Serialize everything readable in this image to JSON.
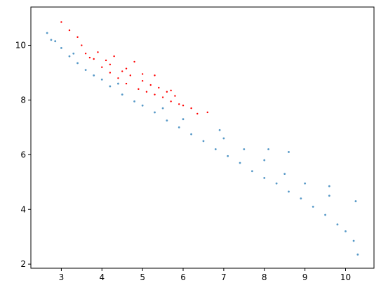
{
  "chart_data": {
    "type": "scatter",
    "title": "",
    "xlabel": "",
    "ylabel": "",
    "xlim": [
      2.25,
      10.7
    ],
    "ylim": [
      1.85,
      11.4
    ],
    "x_ticks": [
      3,
      4,
      5,
      6,
      7,
      8,
      9,
      10
    ],
    "y_ticks": [
      2,
      4,
      6,
      8,
      10
    ],
    "x_tick_labels": [
      "3",
      "4",
      "5",
      "6",
      "7",
      "8",
      "9",
      "10"
    ],
    "y_tick_labels": [
      "2",
      "4",
      "6",
      "8",
      "10"
    ],
    "grid": false,
    "legend": "none",
    "series": [
      {
        "color": "#1f77b4",
        "values": [
          [
            2.65,
            10.45
          ],
          [
            2.75,
            10.2
          ],
          [
            2.85,
            10.15
          ],
          [
            3.0,
            9.9
          ],
          [
            3.2,
            9.6
          ],
          [
            3.4,
            9.35
          ],
          [
            3.6,
            9.1
          ],
          [
            3.8,
            8.9
          ],
          [
            4.0,
            8.75
          ],
          [
            4.2,
            8.5
          ],
          [
            4.5,
            8.2
          ],
          [
            4.8,
            7.95
          ],
          [
            5.0,
            7.8
          ],
          [
            5.3,
            7.55
          ],
          [
            5.6,
            7.25
          ],
          [
            5.9,
            7.0
          ],
          [
            6.2,
            6.75
          ],
          [
            6.5,
            6.5
          ],
          [
            6.8,
            6.2
          ],
          [
            7.1,
            5.95
          ],
          [
            7.4,
            5.7
          ],
          [
            7.7,
            5.4
          ],
          [
            8.0,
            5.15
          ],
          [
            8.3,
            4.95
          ],
          [
            8.6,
            4.65
          ],
          [
            8.9,
            4.4
          ],
          [
            9.2,
            4.1
          ],
          [
            9.5,
            3.8
          ],
          [
            9.8,
            3.45
          ],
          [
            10.0,
            3.2
          ],
          [
            10.2,
            2.85
          ],
          [
            10.3,
            2.35
          ],
          [
            7.0,
            6.6
          ],
          [
            7.5,
            6.2
          ],
          [
            8.0,
            5.8
          ],
          [
            8.5,
            5.3
          ],
          [
            9.0,
            4.95
          ],
          [
            9.6,
            4.5
          ],
          [
            10.25,
            4.3
          ],
          [
            8.6,
            6.1
          ],
          [
            9.6,
            4.85
          ],
          [
            6.9,
            6.9
          ],
          [
            6.0,
            7.3
          ],
          [
            8.1,
            6.2
          ],
          [
            5.5,
            7.7
          ],
          [
            4.4,
            8.6
          ],
          [
            3.3,
            9.7
          ]
        ]
      },
      {
        "color": "#ff0000",
        "values": [
          [
            3.0,
            10.85
          ],
          [
            3.2,
            10.55
          ],
          [
            3.4,
            10.3
          ],
          [
            3.5,
            10.0
          ],
          [
            3.6,
            9.7
          ],
          [
            3.8,
            9.5
          ],
          [
            3.9,
            9.75
          ],
          [
            4.0,
            9.2
          ],
          [
            4.1,
            9.45
          ],
          [
            4.2,
            9.0
          ],
          [
            4.3,
            9.6
          ],
          [
            4.4,
            8.8
          ],
          [
            4.5,
            9.05
          ],
          [
            4.6,
            8.6
          ],
          [
            4.7,
            8.9
          ],
          [
            4.8,
            9.4
          ],
          [
            4.9,
            8.4
          ],
          [
            5.0,
            8.7
          ],
          [
            5.1,
            8.3
          ],
          [
            5.2,
            8.55
          ],
          [
            5.3,
            8.2
          ],
          [
            5.4,
            8.45
          ],
          [
            5.5,
            8.1
          ],
          [
            5.6,
            8.3
          ],
          [
            5.7,
            7.95
          ],
          [
            5.8,
            8.15
          ],
          [
            5.9,
            7.85
          ],
          [
            6.0,
            7.8
          ],
          [
            6.2,
            7.7
          ],
          [
            6.35,
            7.5
          ],
          [
            6.6,
            7.55
          ],
          [
            5.3,
            8.9
          ],
          [
            4.6,
            9.15
          ],
          [
            3.7,
            9.55
          ],
          [
            4.2,
            9.3
          ],
          [
            5.0,
            8.95
          ],
          [
            5.7,
            8.35
          ]
        ]
      }
    ]
  }
}
